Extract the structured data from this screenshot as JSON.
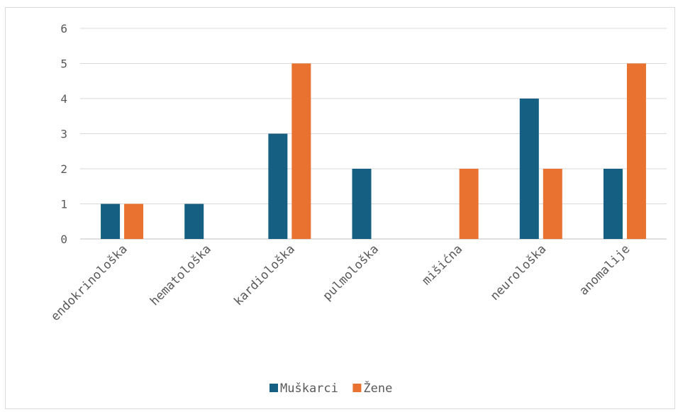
{
  "chart_data": {
    "type": "bar",
    "categories": [
      "endokrinološka",
      "hematološka",
      "kardiološka",
      "pulmološka",
      "mišićna",
      "neurološka",
      "anomalije"
    ],
    "series": [
      {
        "name": "Muškarci",
        "color": "#145f82",
        "values": [
          1,
          1,
          3,
          2,
          0,
          4,
          2
        ]
      },
      {
        "name": "Žene",
        "color": "#ea7230",
        "values": [
          1,
          0,
          5,
          0,
          2,
          2,
          5
        ]
      }
    ],
    "ylim": [
      0,
      6
    ],
    "yticks": [
      "0",
      "1",
      "2",
      "3",
      "4",
      "5",
      "6"
    ],
    "grid": true,
    "legend_position": "bottom",
    "title": "",
    "xlabel": "",
    "ylabel": ""
  }
}
